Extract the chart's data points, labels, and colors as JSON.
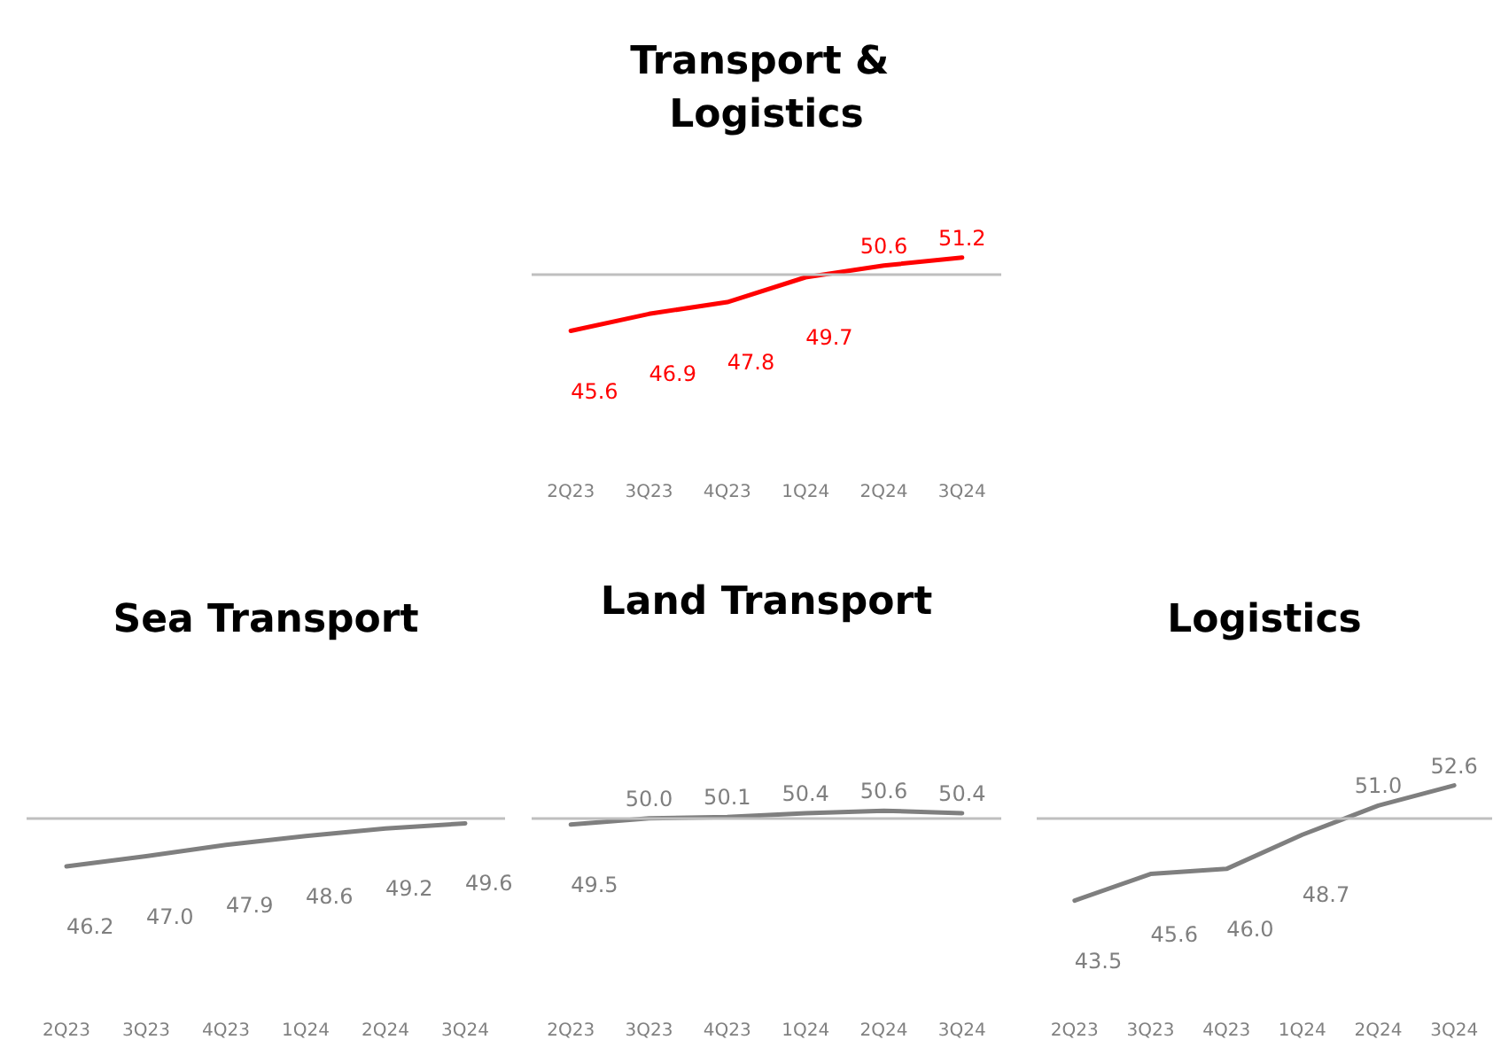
{
  "chart_data": [
    {
      "type": "line",
      "title": "Transport & Logistics",
      "categories": [
        "2Q23",
        "3Q23",
        "4Q23",
        "1Q24",
        "2Q24",
        "3Q24"
      ],
      "series": [
        {
          "color": "#ff0000",
          "values": [
            45.6,
            46.9,
            47.8,
            49.7,
            50.6,
            51.2
          ],
          "value_labels": [
            "45.6",
            "46.9",
            "47.8",
            "49.7",
            "50.6",
            "51.2"
          ]
        }
      ],
      "tick_labels": "x",
      "grid": false,
      "marker": "none",
      "ref_lines": [
        {
          "axis": "y",
          "value": 50,
          "color": "#bfbfbf"
        }
      ]
    },
    {
      "type": "line",
      "title": "Sea Transport",
      "categories": [
        "2Q23",
        "3Q23",
        "4Q23",
        "1Q24",
        "2Q24",
        "3Q24"
      ],
      "series": [
        {
          "color": "#7f7f7f",
          "values": [
            46.2,
            47.0,
            47.9,
            48.6,
            49.2,
            49.6
          ],
          "value_labels": [
            "46.2",
            "47.0",
            "47.9",
            "48.6",
            "49.2",
            "49.6"
          ]
        }
      ],
      "tick_labels": "x",
      "grid": false,
      "marker": "none",
      "ref_lines": [
        {
          "axis": "y",
          "value": 50,
          "color": "#bfbfbf"
        }
      ]
    },
    {
      "type": "line",
      "title": "Land Transport",
      "categories": [
        "2Q23",
        "3Q23",
        "4Q23",
        "1Q24",
        "2Q24",
        "3Q24"
      ],
      "series": [
        {
          "color": "#7f7f7f",
          "values": [
            49.5,
            50.0,
            50.1,
            50.4,
            50.6,
            50.4
          ],
          "value_labels": [
            "49.5",
            "50.0",
            "50.1",
            "50.4",
            "50.6",
            "50.4"
          ]
        }
      ],
      "tick_labels": "x",
      "grid": false,
      "marker": "none",
      "ref_lines": [
        {
          "axis": "y",
          "value": 50,
          "color": "#bfbfbf"
        }
      ]
    },
    {
      "type": "line",
      "title": "Logistics",
      "categories": [
        "2Q23",
        "3Q23",
        "4Q23",
        "1Q24",
        "2Q24",
        "3Q24"
      ],
      "series": [
        {
          "color": "#7f7f7f",
          "values": [
            43.5,
            45.6,
            46.0,
            48.7,
            51.0,
            52.6
          ],
          "value_labels": [
            "43.5",
            "45.6",
            "46.0",
            "48.7",
            "51.0",
            "52.6"
          ]
        }
      ],
      "tick_labels": "x",
      "grid": false,
      "marker": "none",
      "ref_lines": [
        {
          "axis": "y",
          "value": 50,
          "color": "#bfbfbf"
        }
      ]
    }
  ]
}
